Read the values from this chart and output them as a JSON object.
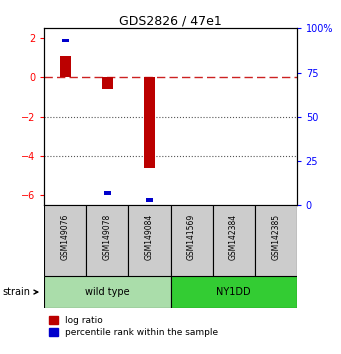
{
  "title": "GDS2826 / 47e1",
  "samples": [
    "GSM149076",
    "GSM149078",
    "GSM149084",
    "GSM141569",
    "GSM142384",
    "GSM142385"
  ],
  "log_ratio": [
    1.1,
    -0.6,
    -4.6,
    0.0,
    0.0,
    0.0
  ],
  "percentile": [
    93.0,
    7.0,
    3.0,
    0.0,
    0.0,
    0.0
  ],
  "groups": [
    {
      "name": "wild type",
      "indices": [
        0,
        1,
        2
      ],
      "color": "#AAEEA A"
    },
    {
      "name": "NY1DD",
      "indices": [
        3,
        4,
        5
      ],
      "color": "#44EE44"
    }
  ],
  "group_colors": [
    "#BBEEAA",
    "#44DD44"
  ],
  "ylim_left": [
    -6.5,
    2.5
  ],
  "ylim_right": [
    0,
    100
  ],
  "yticks_left": [
    -6,
    -4,
    -2,
    0,
    2
  ],
  "yticks_right": [
    0,
    25,
    50,
    75,
    100
  ],
  "bar_color_red": "#BB0000",
  "bar_color_blue": "#0000CC",
  "dashed_line_color": "#CC2222",
  "dotted_line_color": "#555555",
  "group_label_strain": "strain",
  "legend_log_ratio": "log ratio",
  "legend_percentile": "percentile rank within the sample"
}
